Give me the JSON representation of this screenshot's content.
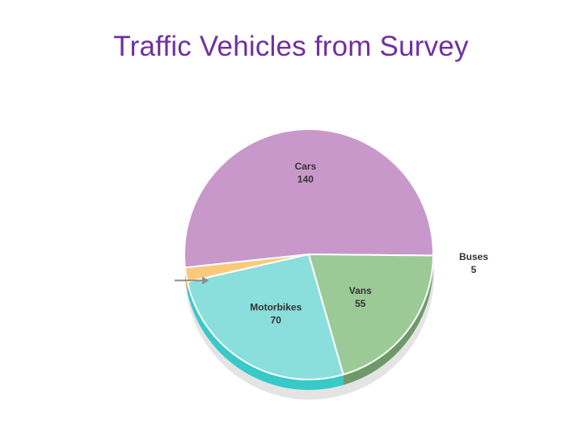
{
  "title": "Traffic Vehicles from Survey",
  "chart_data": {
    "type": "pie",
    "title": "Traffic Vehicles from Survey",
    "categories": [
      "Cars",
      "Buses",
      "Motorbikes",
      "Vans"
    ],
    "values": [
      140,
      5,
      70,
      55
    ],
    "colors": [
      "#c998cb",
      "#fbc97a",
      "#8adfdc",
      "#9bca96"
    ],
    "side_colors": [
      "#ffffff",
      "#e0a850",
      "#38c9c9",
      "#6e9a6a"
    ],
    "style": "3d-tilted",
    "label_placement": "inside slices; Buses outside to the right with arrow",
    "legend": "none"
  }
}
